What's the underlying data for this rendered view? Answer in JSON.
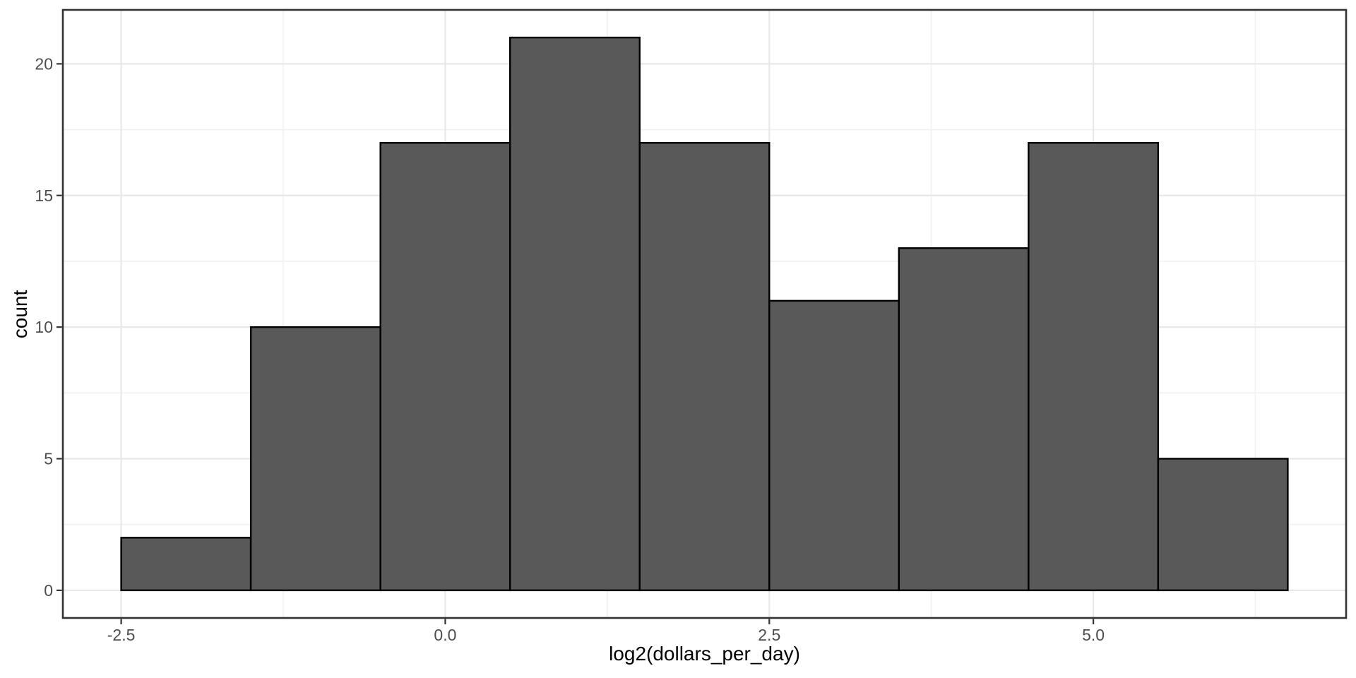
{
  "figure": {
    "background": "#ffffff"
  },
  "chart_data": {
    "type": "bar",
    "subtype": "histogram",
    "title": "",
    "xlabel": "log2(dollars_per_day)",
    "ylabel": "count",
    "bin_start": -2.5,
    "bin_width": 1,
    "bin_edges": [
      -2.5,
      -1.5,
      -0.5,
      0.5,
      1.5,
      2.5,
      3.5,
      4.5,
      5.5,
      6.5
    ],
    "counts": [
      2,
      10,
      17,
      21,
      17,
      11,
      13,
      17,
      5
    ],
    "x_ticks": {
      "values": [
        -2.5,
        0.0,
        2.5,
        5.0
      ],
      "labels": [
        "-2.5",
        "0.0",
        "2.5",
        "5.0"
      ]
    },
    "y_ticks": {
      "values": [
        0,
        5,
        10,
        15,
        20
      ],
      "labels": [
        "0",
        "5",
        "10",
        "15",
        "20"
      ]
    },
    "x_minor_gridlines": [
      -1.25,
      1.25,
      3.75,
      6.25
    ],
    "y_minor_gridlines": [
      2.5,
      7.5,
      12.5,
      17.5
    ],
    "xlim": [
      -2.95,
      6.95
    ],
    "ylim": [
      -1.05,
      22.05
    ],
    "grid": "on",
    "legend": "none",
    "colors": {
      "bar_fill": "#595959",
      "bar_stroke": "#000000",
      "panel_border": "#333333",
      "panel_background": "#ffffff",
      "grid_major": "#e8e8e8",
      "grid_minor": "#f2f2f2",
      "tick_mark": "#333333",
      "tick_label": "#4d4d4d",
      "axis_title": "#000000"
    }
  }
}
